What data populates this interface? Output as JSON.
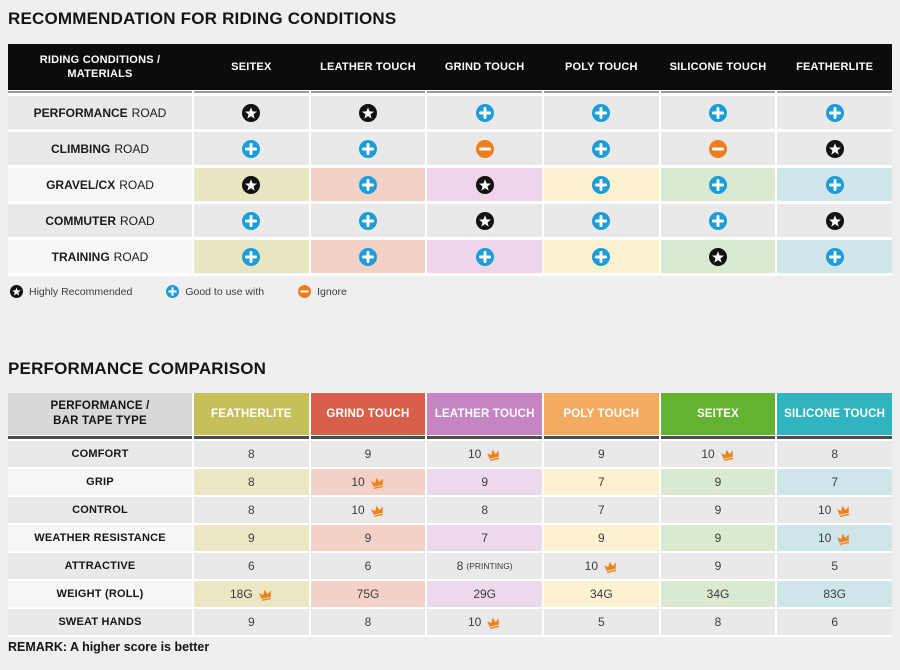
{
  "colors": {
    "page_bg": "#efefef",
    "panel_bg": "#ffffff",
    "row_gray": "#e9e9e9",
    "row_light": "#f7f7f7",
    "header1_bg": "#0c0c0c",
    "divider1": "#9b9b9b",
    "divider2": "#4d4d4d",
    "icon_blue": "#1b9dd9",
    "icon_orange": "#ee7d1e",
    "icon_black": "#111111",
    "crown_orange": "#f0821e"
  },
  "recommendation": {
    "title": "RECOMMENDATION FOR RIDING CONDITIONS",
    "corner_header": [
      "RIDING CONDITIONS /",
      "MATERIALS"
    ],
    "columns": [
      {
        "label": "SEITEX",
        "tint": "#e8e5c1"
      },
      {
        "label": "LEATHER TOUCH",
        "tint": "#f4d1c7"
      },
      {
        "label": "GRIND TOUCH",
        "tint": "#eed5ea"
      },
      {
        "label": "POLY TOUCH",
        "tint": "#fdf2d0"
      },
      {
        "label": "SILICONE TOUCH",
        "tint": "#d9ead0"
      },
      {
        "label": "FEATHERLITE",
        "tint": "#cee6ea"
      }
    ],
    "rows": [
      {
        "condition": "PERFORMANCE",
        "condition_suffix": "ROAD",
        "tinted": false,
        "ratings": [
          "star",
          "star",
          "plus",
          "plus",
          "plus",
          "plus"
        ]
      },
      {
        "condition": "CLIMBING",
        "condition_suffix": "ROAD",
        "tinted": false,
        "ratings": [
          "plus",
          "plus",
          "minus",
          "plus",
          "minus",
          "star"
        ]
      },
      {
        "condition": "GRAVEL/CX",
        "condition_suffix": "ROAD",
        "tinted": true,
        "ratings": [
          "star",
          "plus",
          "star",
          "plus",
          "plus",
          "plus"
        ]
      },
      {
        "condition": "COMMUTER",
        "condition_suffix": "ROAD",
        "tinted": false,
        "ratings": [
          "plus",
          "plus",
          "star",
          "plus",
          "plus",
          "star"
        ]
      },
      {
        "condition": "TRAINING",
        "condition_suffix": "ROAD",
        "tinted": true,
        "ratings": [
          "plus",
          "plus",
          "plus",
          "plus",
          "star",
          "plus"
        ]
      }
    ],
    "legend": [
      {
        "icon": "star",
        "label": "Highly Recommended"
      },
      {
        "icon": "plus",
        "label": "Good to use with"
      },
      {
        "icon": "minus",
        "label": "Ignore"
      }
    ]
  },
  "performance": {
    "title": "PERFORMANCE COMPARISON",
    "corner_header": [
      "PERFORMANCE /",
      "BAR TAPE TYPE"
    ],
    "columns": [
      {
        "label": "FEATHERLITE",
        "color": "#c6c05c",
        "tint": "#eae7c2"
      },
      {
        "label": "GRIND TOUCH",
        "color": "#d8604a",
        "tint": "#f4d1c7"
      },
      {
        "label": "LEATHER TOUCH",
        "color": "#c585c2",
        "tint": "#ecd9ec"
      },
      {
        "label": "POLY TOUCH",
        "color": "#f3ab61",
        "tint": "#fdf2d0"
      },
      {
        "label": "SEITEX",
        "color": "#64b232",
        "tint": "#d9ead0"
      },
      {
        "label": "SILICONE TOUCH",
        "color": "#30b4c0",
        "tint": "#cee6ea"
      }
    ],
    "rows": [
      {
        "metric": "COMFORT",
        "tinted": false,
        "values": [
          {
            "text": "8"
          },
          {
            "text": "9"
          },
          {
            "text": "10",
            "crown": true
          },
          {
            "text": "9"
          },
          {
            "text": "10",
            "crown": true
          },
          {
            "text": "8"
          }
        ]
      },
      {
        "metric": "GRIP",
        "tinted": true,
        "values": [
          {
            "text": "8"
          },
          {
            "text": "10",
            "crown": true
          },
          {
            "text": "9"
          },
          {
            "text": "7"
          },
          {
            "text": "9"
          },
          {
            "text": "7"
          }
        ]
      },
      {
        "metric": "CONTROL",
        "tinted": false,
        "values": [
          {
            "text": "8"
          },
          {
            "text": "10",
            "crown": true
          },
          {
            "text": "8"
          },
          {
            "text": "7"
          },
          {
            "text": "9"
          },
          {
            "text": "10",
            "crown": true
          }
        ]
      },
      {
        "metric": "WEATHER RESISTANCE",
        "tinted": true,
        "values": [
          {
            "text": "9"
          },
          {
            "text": "9"
          },
          {
            "text": "7"
          },
          {
            "text": "9"
          },
          {
            "text": "9"
          },
          {
            "text": "10",
            "crown": true
          }
        ]
      },
      {
        "metric": "ATTRACTIVE",
        "tinted": false,
        "values": [
          {
            "text": "6"
          },
          {
            "text": "6"
          },
          {
            "text": "8",
            "note": "(PRINTING)"
          },
          {
            "text": "10",
            "crown": true
          },
          {
            "text": "9"
          },
          {
            "text": "5"
          }
        ]
      },
      {
        "metric": "WEIGHT (ROLL)",
        "tinted": true,
        "values": [
          {
            "text": "18G",
            "crown": true
          },
          {
            "text": "75G"
          },
          {
            "text": "29G"
          },
          {
            "text": "34G"
          },
          {
            "text": "34G"
          },
          {
            "text": "83G"
          }
        ]
      },
      {
        "metric": "SWEAT HANDS",
        "tinted": false,
        "values": [
          {
            "text": "9"
          },
          {
            "text": "8"
          },
          {
            "text": "10",
            "crown": true
          },
          {
            "text": "5"
          },
          {
            "text": "8"
          },
          {
            "text": "6"
          }
        ]
      }
    ],
    "remark": "REMARK: A higher score is better"
  }
}
